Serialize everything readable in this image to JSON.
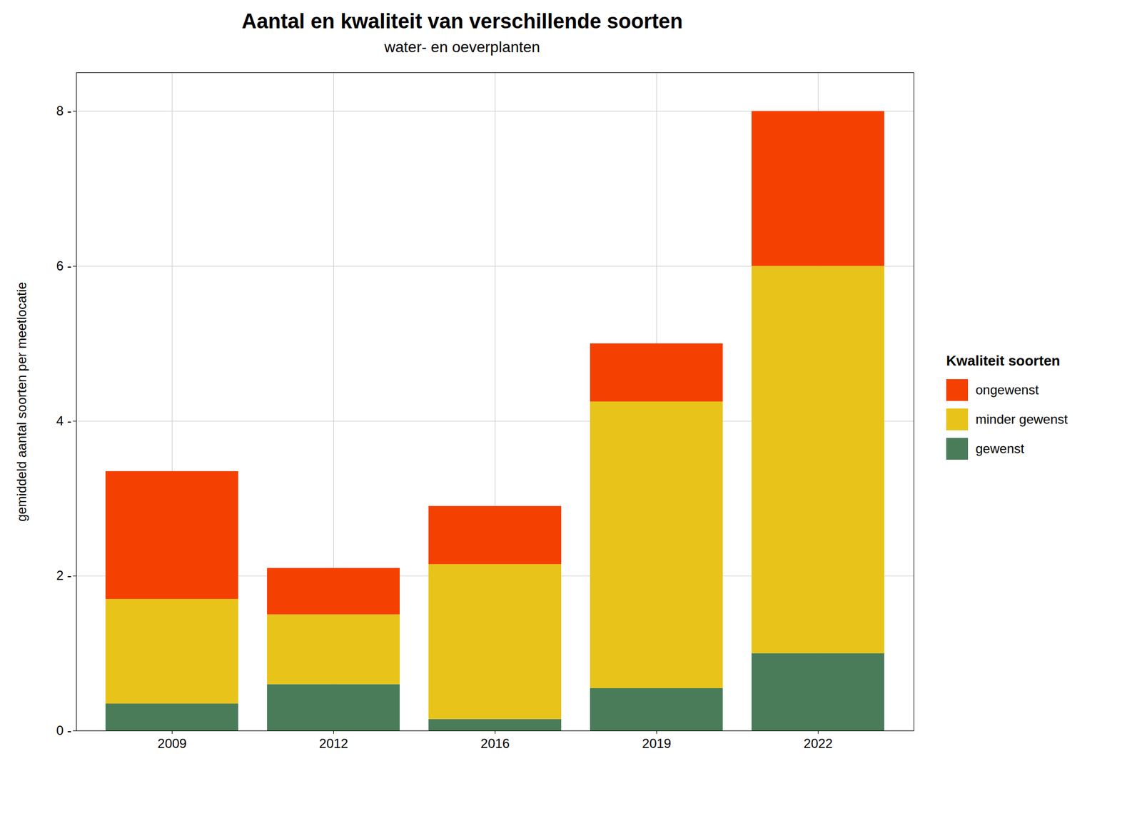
{
  "chart_data": {
    "type": "bar",
    "stacked": true,
    "title": "Aantal en kwaliteit van verschillende soorten",
    "subtitle": "water- en oeverplanten",
    "ylabel": "gemiddeld aantal soorten per meetlocatie",
    "legend_title": "Kwaliteit soorten",
    "legend": "right",
    "grid": true,
    "categories": [
      "2009",
      "2012",
      "2016",
      "2019",
      "2022"
    ],
    "series": [
      {
        "name": "gewenst",
        "color": "#4a7c59",
        "values": [
          0.35,
          0.6,
          0.15,
          0.55,
          1.0
        ]
      },
      {
        "name": "minder gewenst",
        "color": "#e8c319",
        "values": [
          1.35,
          0.9,
          2.0,
          3.7,
          5.0
        ]
      },
      {
        "name": "ongewenst",
        "color": "#f44000",
        "values": [
          1.65,
          0.6,
          0.75,
          0.75,
          2.0
        ]
      }
    ],
    "ylim": [
      0,
      8.5
    ],
    "yticks": [
      {
        "value": 0,
        "label": "0 -"
      },
      {
        "value": 2,
        "label": "2 -"
      },
      {
        "value": 4,
        "label": "4 -"
      },
      {
        "value": 6,
        "label": "6 -"
      },
      {
        "value": 8,
        "label": "8 -"
      }
    ]
  }
}
